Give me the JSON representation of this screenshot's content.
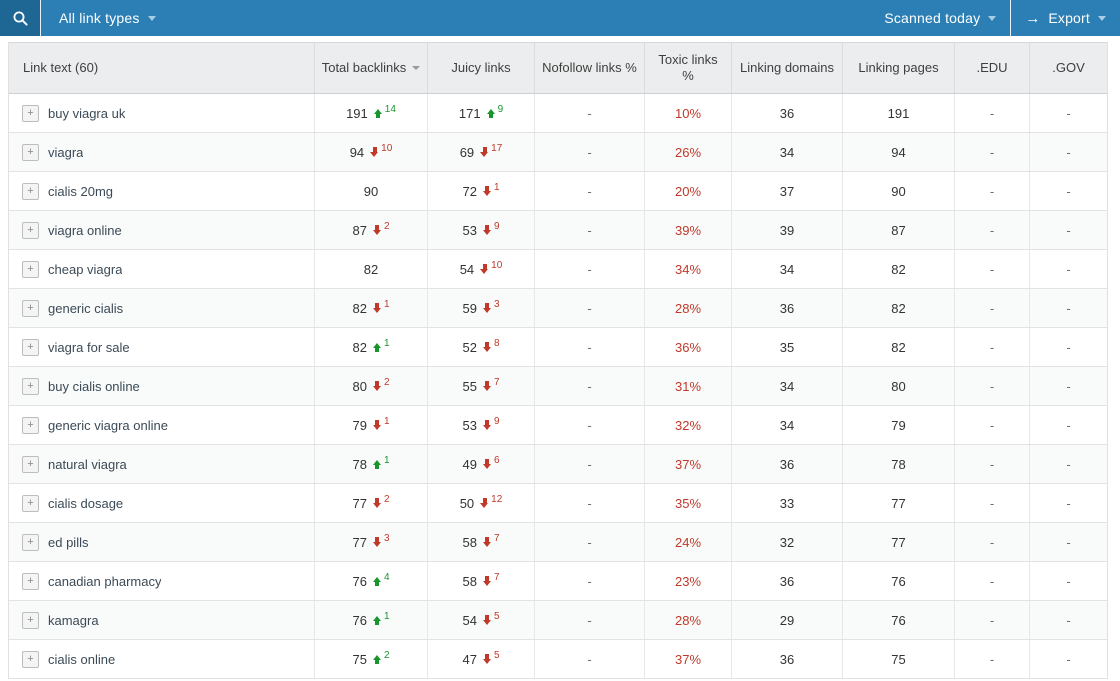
{
  "toolbar": {
    "link_type_filter": "All link types",
    "scan_status": "Scanned today",
    "export_label": "Export",
    "export_icon": "→",
    "expand_icon": "+"
  },
  "colors": {
    "toolbar_blue": "#2b7fb4",
    "search_button_blue": "#1e6795",
    "positive_green": "#18962e",
    "negative_red": "#c0392b",
    "header_gray": "#ecedee"
  },
  "table": {
    "columns": [
      {
        "label": "Link text (60)",
        "sorted": false
      },
      {
        "label": "Total backlinks",
        "sorted": true
      },
      {
        "label": "Juicy links",
        "sorted": false
      },
      {
        "label": "Nofollow links %",
        "sorted": false
      },
      {
        "label": "Toxic links %",
        "sorted": false
      },
      {
        "label": "Linking domains",
        "sorted": false
      },
      {
        "label": "Linking pages",
        "sorted": false
      },
      {
        "label": ".EDU",
        "sorted": false
      },
      {
        "label": ".GOV",
        "sorted": false
      }
    ],
    "rows": [
      {
        "text": "buy viagra uk",
        "total": {
          "value": "191",
          "dir": "up",
          "delta": "14"
        },
        "juicy": {
          "value": "171",
          "dir": "up",
          "delta": "9"
        },
        "nofollow": "-",
        "toxic": "10%",
        "domains": "36",
        "pages": "191",
        "edu": "-",
        "gov": "-"
      },
      {
        "text": "viagra",
        "total": {
          "value": "94",
          "dir": "down",
          "delta": "10"
        },
        "juicy": {
          "value": "69",
          "dir": "down",
          "delta": "17"
        },
        "nofollow": "-",
        "toxic": "26%",
        "domains": "34",
        "pages": "94",
        "edu": "-",
        "gov": "-"
      },
      {
        "text": "cialis 20mg",
        "total": {
          "value": "90",
          "dir": "",
          "delta": ""
        },
        "juicy": {
          "value": "72",
          "dir": "down",
          "delta": "1"
        },
        "nofollow": "-",
        "toxic": "20%",
        "domains": "37",
        "pages": "90",
        "edu": "-",
        "gov": "-"
      },
      {
        "text": "viagra online",
        "total": {
          "value": "87",
          "dir": "down",
          "delta": "2"
        },
        "juicy": {
          "value": "53",
          "dir": "down",
          "delta": "9"
        },
        "nofollow": "-",
        "toxic": "39%",
        "domains": "39",
        "pages": "87",
        "edu": "-",
        "gov": "-"
      },
      {
        "text": "cheap viagra",
        "total": {
          "value": "82",
          "dir": "",
          "delta": ""
        },
        "juicy": {
          "value": "54",
          "dir": "down",
          "delta": "10"
        },
        "nofollow": "-",
        "toxic": "34%",
        "domains": "34",
        "pages": "82",
        "edu": "-",
        "gov": "-"
      },
      {
        "text": "generic cialis",
        "total": {
          "value": "82",
          "dir": "down",
          "delta": "1"
        },
        "juicy": {
          "value": "59",
          "dir": "down",
          "delta": "3"
        },
        "nofollow": "-",
        "toxic": "28%",
        "domains": "36",
        "pages": "82",
        "edu": "-",
        "gov": "-"
      },
      {
        "text": "viagra for sale",
        "total": {
          "value": "82",
          "dir": "up",
          "delta": "1"
        },
        "juicy": {
          "value": "52",
          "dir": "down",
          "delta": "8"
        },
        "nofollow": "-",
        "toxic": "36%",
        "domains": "35",
        "pages": "82",
        "edu": "-",
        "gov": "-"
      },
      {
        "text": "buy cialis online",
        "total": {
          "value": "80",
          "dir": "down",
          "delta": "2"
        },
        "juicy": {
          "value": "55",
          "dir": "down",
          "delta": "7"
        },
        "nofollow": "-",
        "toxic": "31%",
        "domains": "34",
        "pages": "80",
        "edu": "-",
        "gov": "-"
      },
      {
        "text": "generic viagra online",
        "total": {
          "value": "79",
          "dir": "down",
          "delta": "1"
        },
        "juicy": {
          "value": "53",
          "dir": "down",
          "delta": "9"
        },
        "nofollow": "-",
        "toxic": "32%",
        "domains": "34",
        "pages": "79",
        "edu": "-",
        "gov": "-"
      },
      {
        "text": "natural viagra",
        "total": {
          "value": "78",
          "dir": "up",
          "delta": "1"
        },
        "juicy": {
          "value": "49",
          "dir": "down",
          "delta": "6"
        },
        "nofollow": "-",
        "toxic": "37%",
        "domains": "36",
        "pages": "78",
        "edu": "-",
        "gov": "-"
      },
      {
        "text": "cialis dosage",
        "total": {
          "value": "77",
          "dir": "down",
          "delta": "2"
        },
        "juicy": {
          "value": "50",
          "dir": "down",
          "delta": "12"
        },
        "nofollow": "-",
        "toxic": "35%",
        "domains": "33",
        "pages": "77",
        "edu": "-",
        "gov": "-"
      },
      {
        "text": "ed pills",
        "total": {
          "value": "77",
          "dir": "down",
          "delta": "3"
        },
        "juicy": {
          "value": "58",
          "dir": "down",
          "delta": "7"
        },
        "nofollow": "-",
        "toxic": "24%",
        "domains": "32",
        "pages": "77",
        "edu": "-",
        "gov": "-"
      },
      {
        "text": "canadian pharmacy",
        "total": {
          "value": "76",
          "dir": "up",
          "delta": "4"
        },
        "juicy": {
          "value": "58",
          "dir": "down",
          "delta": "7"
        },
        "nofollow": "-",
        "toxic": "23%",
        "domains": "36",
        "pages": "76",
        "edu": "-",
        "gov": "-"
      },
      {
        "text": "kamagra",
        "total": {
          "value": "76",
          "dir": "up",
          "delta": "1"
        },
        "juicy": {
          "value": "54",
          "dir": "down",
          "delta": "5"
        },
        "nofollow": "-",
        "toxic": "28%",
        "domains": "29",
        "pages": "76",
        "edu": "-",
        "gov": "-"
      },
      {
        "text": "cialis online",
        "total": {
          "value": "75",
          "dir": "up",
          "delta": "2"
        },
        "juicy": {
          "value": "47",
          "dir": "down",
          "delta": "5"
        },
        "nofollow": "-",
        "toxic": "37%",
        "domains": "36",
        "pages": "75",
        "edu": "-",
        "gov": "-"
      }
    ]
  }
}
